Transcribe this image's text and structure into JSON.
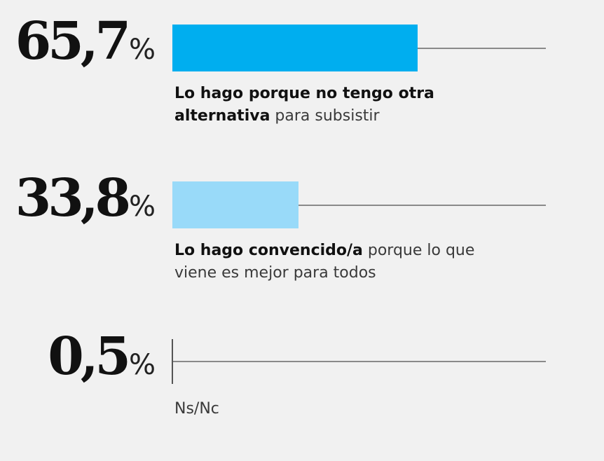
{
  "chart_data": {
    "type": "bar",
    "orientation": "horizontal",
    "xlim": [
      0,
      100
    ],
    "unit": "%",
    "items": [
      {
        "value_text": "65,7",
        "value": 65.7,
        "label_bold": "Lo hago porque no tengo otra alternativa",
        "label_rest": " para subsistir",
        "color": "#00aeef"
      },
      {
        "value_text": "33,8",
        "value": 33.8,
        "label_bold": "Lo hago convencido/a",
        "label_rest": " porque lo que viene es mejor para todos",
        "color": "#99daf9"
      },
      {
        "value_text": "0,5",
        "value": 0.5,
        "label_bold": "",
        "label_rest": "Ns/Nc",
        "color": "#555555"
      }
    ]
  }
}
